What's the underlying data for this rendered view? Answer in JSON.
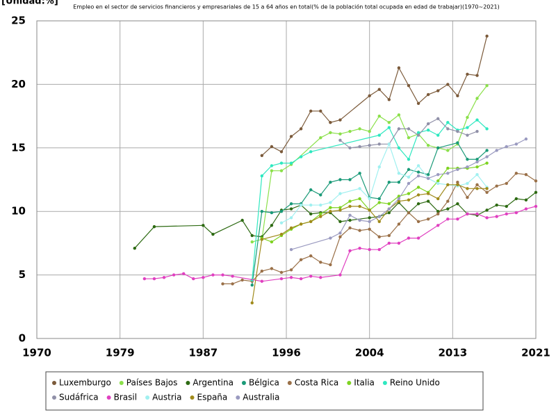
{
  "chart_data": {
    "type": "line",
    "unit_label": "[Unidad:%]",
    "title": "Empleo en el sector de servicios financieros y empresariales de 15 a 64 años en total(% de la población total ocupada en edad de trabajar)(1970~2021)",
    "xlim": [
      1970,
      2021
    ],
    "xticks": [
      1970,
      {
        "value": 1978.5,
        "label": "1979"
      },
      1987,
      {
        "value": 1995.5,
        "label": "1996"
      },
      2004,
      {
        "value": 2012.5,
        "label": "2013"
      },
      2021
    ],
    "ylim": [
      0,
      25
    ],
    "yticks": [
      0,
      5,
      10,
      15,
      20,
      25
    ],
    "grid": true,
    "legend": "bottom",
    "series": [
      {
        "name": "Luxemburgo",
        "color": "#7b5a3a",
        "x": [
          1993,
          1994,
          1995,
          1996,
          1997,
          1998,
          1999,
          2000,
          2001,
          2004,
          2005,
          2006,
          2007,
          2008,
          2009,
          2010,
          2011,
          2012,
          2013,
          2014,
          2015,
          2016
        ],
        "values": [
          14.4,
          15.1,
          14.7,
          15.9,
          16.5,
          17.9,
          17.9,
          17.0,
          17.2,
          19.1,
          19.6,
          18.8,
          21.3,
          19.9,
          18.5,
          19.2,
          19.5,
          20.0,
          19.1,
          20.8,
          20.7,
          23.8
        ]
      },
      {
        "name": "Países Bajos",
        "color": "#8be04a",
        "x": [
          1992,
          1993,
          1994,
          1995,
          1996,
          1999,
          2000,
          2001,
          2002,
          2003,
          2004,
          2005,
          2006,
          2007,
          2008,
          2009,
          2010,
          2011,
          2012,
          2013,
          2014,
          2015,
          2016
        ],
        "values": [
          7.6,
          7.8,
          13.2,
          13.2,
          13.7,
          15.8,
          16.2,
          16.1,
          16.3,
          16.5,
          16.3,
          17.5,
          17.0,
          17.6,
          15.8,
          16.1,
          15.2,
          15.0,
          14.8,
          15.3,
          17.4,
          18.9,
          19.9
        ]
      },
      {
        "name": "Argentina",
        "color": "#2d6a12",
        "x": [
          1980,
          1982,
          1987,
          1988,
          1991,
          1992,
          1993,
          1994,
          1995,
          1996,
          1997,
          1998,
          1999,
          2000,
          2001,
          2002,
          2004,
          2005,
          2006,
          2007,
          2008,
          2009,
          2010,
          2011,
          2012,
          2013,
          2014,
          2015,
          2016,
          2017,
          2018,
          2019,
          2020,
          2021
        ],
        "values": [
          7.1,
          8.8,
          8.9,
          8.2,
          9.3,
          8.1,
          8.0,
          8.9,
          10.1,
          10.2,
          10.5,
          9.8,
          9.9,
          9.9,
          9.2,
          9.3,
          9.5,
          9.6,
          9.9,
          10.7,
          9.9,
          10.6,
          10.8,
          10.0,
          10.2,
          10.6,
          9.8,
          9.7,
          10.1,
          10.5,
          10.4,
          11.0,
          10.9,
          11.5
        ]
      },
      {
        "name": "Bélgica",
        "color": "#1a9a78",
        "x": [
          1992,
          1993,
          1994,
          1995,
          1996,
          1997,
          1998,
          1999,
          2000,
          2001,
          2002,
          2003,
          2004,
          2005,
          2006,
          2007,
          2008,
          2009,
          2010,
          2011,
          2013,
          2014,
          2015,
          2016
        ],
        "values": [
          4.2,
          10.0,
          9.9,
          10.0,
          10.6,
          10.6,
          11.7,
          11.3,
          12.3,
          12.5,
          12.5,
          13.0,
          11.1,
          11.0,
          12.3,
          12.3,
          13.3,
          13.1,
          12.9,
          15.0,
          15.4,
          14.1,
          14.1,
          14.8
        ]
      },
      {
        "name": "Costa Rica",
        "color": "#9a7048",
        "x": [
          1989,
          1990,
          1991,
          1992,
          1993,
          1994,
          1995,
          1996,
          1997,
          1998,
          1999,
          2000,
          2001,
          2002,
          2003,
          2004,
          2005,
          2006,
          2007,
          2008,
          2009,
          2010,
          2011,
          2012,
          2013,
          2014,
          2015,
          2016,
          2017,
          2018,
          2019,
          2020,
          2021
        ],
        "values": [
          4.3,
          4.3,
          4.6,
          4.5,
          5.3,
          5.5,
          5.2,
          5.4,
          6.2,
          6.5,
          6.0,
          5.8,
          8.0,
          8.7,
          8.5,
          8.6,
          8.0,
          8.1,
          9.0,
          9.9,
          9.2,
          9.4,
          9.8,
          10.8,
          12.3,
          11.1,
          12.1,
          11.5,
          12.0,
          12.2,
          13.0,
          12.9,
          12.4
        ]
      },
      {
        "name": "Italia",
        "color": "#7ed321",
        "x": [
          1993,
          1994,
          1995,
          1996,
          1997,
          1998,
          1999,
          2000,
          2001,
          2002,
          2003,
          2004,
          2005,
          2006,
          2007,
          2008,
          2009,
          2010,
          2011,
          2012,
          2013,
          2014,
          2015,
          2016
        ],
        "values": [
          7.9,
          7.6,
          8.1,
          8.6,
          9.0,
          9.2,
          9.8,
          10.3,
          10.3,
          10.8,
          11.0,
          10.1,
          10.7,
          10.6,
          11.2,
          11.4,
          11.9,
          11.5,
          12.4,
          13.4,
          13.4,
          13.4,
          13.5,
          13.8
        ]
      },
      {
        "name": "Reino Unido",
        "color": "#2ee8c0",
        "x": [
          1992,
          1993,
          1994,
          1995,
          1996,
          1997,
          1998,
          2005,
          2006,
          2007,
          2008,
          2009,
          2010,
          2011,
          2012,
          2013,
          2014,
          2015,
          2016
        ],
        "values": [
          4.6,
          12.8,
          13.6,
          13.8,
          13.8,
          14.3,
          14.7,
          16.0,
          16.6,
          15.0,
          14.1,
          16.2,
          16.4,
          16.0,
          17.0,
          16.4,
          16.6,
          17.2,
          16.5
        ]
      },
      {
        "name": "Sudáfrica",
        "color": "#9090a8",
        "x": [
          2001,
          2002,
          2003,
          2004,
          2005,
          2006,
          2007,
          2008,
          2009,
          2010,
          2011,
          2012,
          2013,
          2014,
          2015
        ],
        "values": [
          15.6,
          15.0,
          15.1,
          15.2,
          15.3,
          15.3,
          16.5,
          16.5,
          16.0,
          16.9,
          17.3,
          16.5,
          16.3,
          16.0,
          16.3
        ]
      },
      {
        "name": "Brasil",
        "color": "#e040c0",
        "x": [
          1981,
          1982,
          1983,
          1984,
          1985,
          1986,
          1987,
          1988,
          1989,
          1990,
          1993,
          1995,
          1996,
          1997,
          1998,
          1999,
          2001,
          2002,
          2003,
          2004,
          2005,
          2006,
          2007,
          2008,
          2009,
          2011,
          2012,
          2013,
          2014,
          2015,
          2016,
          2017,
          2018,
          2019,
          2020,
          2021
        ],
        "values": [
          4.7,
          4.7,
          4.8,
          5.0,
          5.1,
          4.7,
          4.8,
          5.0,
          5.0,
          4.9,
          4.5,
          4.7,
          4.8,
          4.7,
          4.9,
          4.8,
          5.0,
          6.9,
          7.1,
          7.0,
          7.0,
          7.5,
          7.5,
          7.9,
          7.9,
          8.9,
          9.4,
          9.4,
          9.8,
          9.8,
          9.5,
          9.6,
          9.8,
          9.9,
          10.2,
          10.4
        ]
      },
      {
        "name": "Austria",
        "color": "#a0f0f0",
        "x": [
          1995,
          1996,
          1997,
          1998,
          1999,
          2000,
          2001,
          2003,
          2004,
          2005,
          2006,
          2007,
          2008,
          2009,
          2010,
          2011,
          2012,
          2013,
          2014,
          2015,
          2016
        ],
        "values": [
          9.1,
          9.5,
          10.5,
          10.5,
          10.5,
          10.7,
          11.4,
          11.8,
          11.0,
          13.5,
          15.3,
          13.0,
          12.7,
          13.6,
          12.6,
          12.2,
          12.1,
          12.0,
          12.2,
          12.9,
          11.9
        ]
      },
      {
        "name": "España",
        "color": "#a08a1a",
        "x": [
          1992,
          1993,
          1995,
          1996,
          1997,
          1998,
          1999,
          2000,
          2001,
          2002,
          2003,
          2004,
          2005,
          2006,
          2007,
          2008,
          2009,
          2010,
          2011,
          2012,
          2013,
          2014,
          2015,
          2016
        ],
        "values": [
          2.8,
          7.8,
          8.2,
          8.7,
          9.0,
          9.2,
          9.6,
          10.0,
          10.1,
          10.4,
          10.4,
          10.1,
          9.2,
          10.2,
          10.8,
          10.9,
          11.3,
          11.4,
          11.0,
          12.1,
          12.1,
          11.8,
          11.8,
          11.8
        ]
      },
      {
        "name": "Australia",
        "color": "#9a9ac0",
        "x": [
          1996,
          2000,
          2001,
          2002,
          2003,
          2004,
          2005,
          2006,
          2007,
          2008,
          2009,
          2010,
          2011,
          2012,
          2013,
          2014,
          2015,
          2016,
          2017,
          2018,
          2019,
          2020
        ],
        "values": [
          7.0,
          7.9,
          8.3,
          9.7,
          9.3,
          9.2,
          9.6,
          10.2,
          11.0,
          12.2,
          12.8,
          12.6,
          12.9,
          13.0,
          13.3,
          13.5,
          13.9,
          14.3,
          14.8,
          15.1,
          15.3,
          15.7
        ]
      }
    ]
  }
}
